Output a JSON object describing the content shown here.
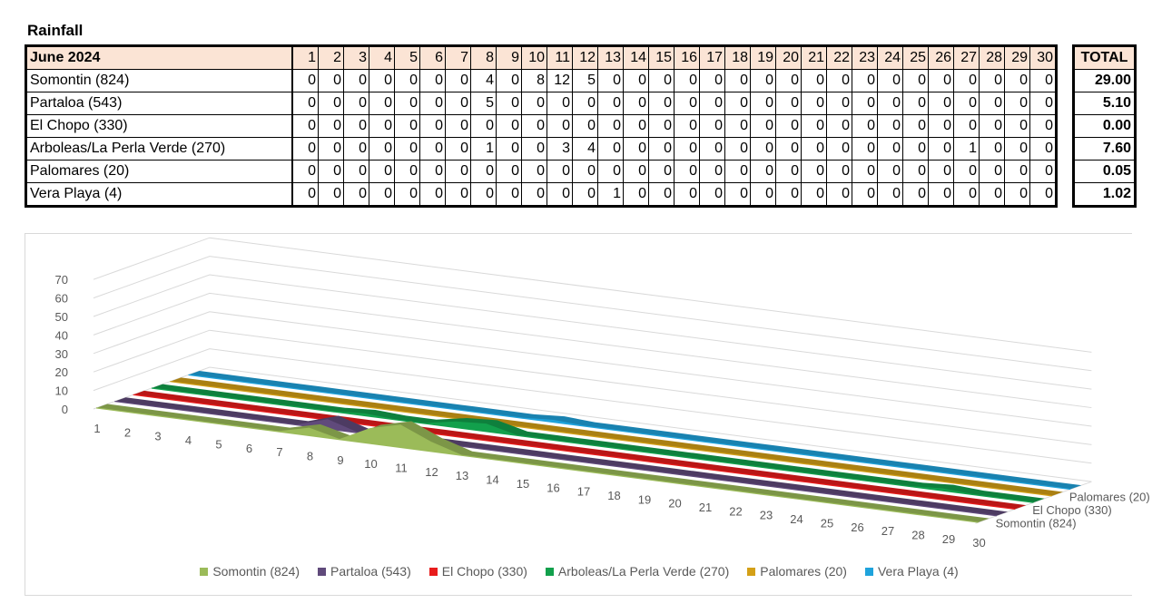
{
  "title": "Rainfall",
  "table": {
    "month_label": "June 2024",
    "total_label": "TOTAL",
    "days": [
      "1",
      "2",
      "3",
      "4",
      "5",
      "6",
      "7",
      "8",
      "9",
      "10",
      "11",
      "12",
      "13",
      "14",
      "15",
      "16",
      "17",
      "18",
      "19",
      "20",
      "21",
      "22",
      "23",
      "24",
      "25",
      "26",
      "27",
      "28",
      "29",
      "30"
    ],
    "rows": [
      {
        "station": "Somontin (824)",
        "values": [
          "0",
          "0",
          "0",
          "0",
          "0",
          "0",
          "0",
          "4",
          "0",
          "8",
          "12",
          "5",
          "0",
          "0",
          "0",
          "0",
          "0",
          "0",
          "0",
          "0",
          "0",
          "0",
          "0",
          "0",
          "0",
          "0",
          "0",
          "0",
          "0",
          "0"
        ],
        "total": "29.00"
      },
      {
        "station": "Partaloa (543)",
        "values": [
          "0",
          "0",
          "0",
          "0",
          "0",
          "0",
          "0",
          "5",
          "0",
          "0",
          "0",
          "0",
          "0",
          "0",
          "0",
          "0",
          "0",
          "0",
          "0",
          "0",
          "0",
          "0",
          "0",
          "0",
          "0",
          "0",
          "0",
          "0",
          "0",
          "0"
        ],
        "total": "5.10"
      },
      {
        "station": "El Chopo (330)",
        "values": [
          "0",
          "0",
          "0",
          "0",
          "0",
          "0",
          "0",
          "0",
          "0",
          "0",
          "0",
          "0",
          "0",
          "0",
          "0",
          "0",
          "0",
          "0",
          "0",
          "0",
          "0",
          "0",
          "0",
          "0",
          "0",
          "0",
          "0",
          "0",
          "0",
          "0"
        ],
        "total": "0.00"
      },
      {
        "station": "Arboleas/La Perla Verde (270)",
        "values": [
          "0",
          "0",
          "0",
          "0",
          "0",
          "0",
          "0",
          "1",
          "0",
          "0",
          "3",
          "4",
          "0",
          "0",
          "0",
          "0",
          "0",
          "0",
          "0",
          "0",
          "0",
          "0",
          "0",
          "0",
          "0",
          "0",
          "1",
          "0",
          "0",
          "0"
        ],
        "total": "7.60"
      },
      {
        "station": "Palomares (20)",
        "values": [
          "0",
          "0",
          "0",
          "0",
          "0",
          "0",
          "0",
          "0",
          "0",
          "0",
          "0",
          "0",
          "0",
          "0",
          "0",
          "0",
          "0",
          "0",
          "0",
          "0",
          "0",
          "0",
          "0",
          "0",
          "0",
          "0",
          "0",
          "0",
          "0",
          "0"
        ],
        "total": "0.05"
      },
      {
        "station": "Vera Playa (4)",
        "values": [
          "0",
          "0",
          "0",
          "0",
          "0",
          "0",
          "0",
          "0",
          "0",
          "0",
          "0",
          "0",
          "1",
          "0",
          "0",
          "0",
          "0",
          "0",
          "0",
          "0",
          "0",
          "0",
          "0",
          "0",
          "0",
          "0",
          "0",
          "0",
          "0",
          "0"
        ],
        "total": "1.02"
      }
    ]
  },
  "chart_data": {
    "type": "area",
    "subtype": "3d-area",
    "x": [
      1,
      2,
      3,
      4,
      5,
      6,
      7,
      8,
      9,
      10,
      11,
      12,
      13,
      14,
      15,
      16,
      17,
      18,
      19,
      20,
      21,
      22,
      23,
      24,
      25,
      26,
      27,
      28,
      29,
      30
    ],
    "ylim": [
      0,
      70
    ],
    "yticks": [
      0,
      10,
      20,
      30,
      40,
      50,
      60,
      70
    ],
    "grid": true,
    "legend_position": "bottom",
    "depth_labels": [
      "Palomares (20)",
      "El Chopo (330)",
      "Somontin (824)"
    ],
    "series": [
      {
        "name": "Somontin (824)",
        "color": "#9bbb59",
        "values": [
          0,
          0,
          0,
          0,
          0,
          0,
          0,
          4,
          0,
          8,
          12,
          5,
          0,
          0,
          0,
          0,
          0,
          0,
          0,
          0,
          0,
          0,
          0,
          0,
          0,
          0,
          0,
          0,
          0,
          0
        ]
      },
      {
        "name": "Partaloa (543)",
        "color": "#604a7b",
        "values": [
          0,
          0,
          0,
          0,
          0,
          0,
          0,
          5,
          0,
          0,
          0,
          0,
          0,
          0,
          0,
          0,
          0,
          0,
          0,
          0,
          0,
          0,
          0,
          0,
          0,
          0,
          0,
          0,
          0,
          0
        ]
      },
      {
        "name": "El Chopo (330)",
        "color": "#e81c1c",
        "values": [
          0,
          0,
          0,
          0,
          0,
          0,
          0,
          0,
          0,
          0,
          0,
          0,
          0,
          0,
          0,
          0,
          0,
          0,
          0,
          0,
          0,
          0,
          0,
          0,
          0,
          0,
          0,
          0,
          0,
          0
        ]
      },
      {
        "name": "Arboleas/La Perla Verde (270)",
        "color": "#12a04c",
        "values": [
          0,
          0,
          0,
          0,
          0,
          0,
          0,
          1,
          0,
          0,
          3,
          4,
          0,
          0,
          0,
          0,
          0,
          0,
          0,
          0,
          0,
          0,
          0,
          0,
          0,
          0,
          1,
          0,
          0,
          0
        ]
      },
      {
        "name": "Palomares (20)",
        "color": "#d4a017",
        "values": [
          0,
          0,
          0,
          0,
          0,
          0,
          0,
          0,
          0,
          0,
          0,
          0,
          0,
          0,
          0,
          0,
          0,
          0,
          0,
          0,
          0,
          0,
          0,
          0,
          0,
          0,
          0,
          0,
          0,
          0
        ]
      },
      {
        "name": "Vera Playa (4)",
        "color": "#1fa3dc",
        "values": [
          0,
          0,
          0,
          0,
          0,
          0,
          0,
          0,
          0,
          0,
          0,
          0,
          1,
          0,
          0,
          0,
          0,
          0,
          0,
          0,
          0,
          0,
          0,
          0,
          0,
          0,
          0,
          0,
          0,
          0
        ]
      }
    ]
  }
}
